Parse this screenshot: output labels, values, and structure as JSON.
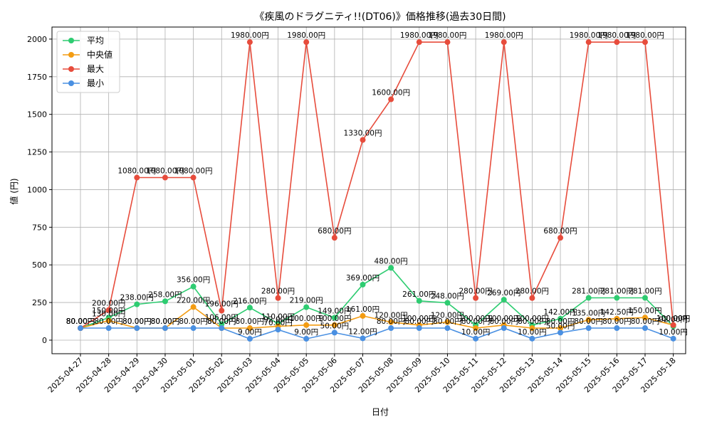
{
  "chart_data": {
    "type": "line",
    "title": "《疾風のドラグニティ!!(DT06)》価格推移(過去30日間)",
    "xlabel": "日付",
    "ylabel": "値 (円)",
    "ylim": [
      -90,
      2080
    ],
    "yticks": [
      0,
      250,
      500,
      750,
      1000,
      1250,
      1500,
      1750,
      2000
    ],
    "grid": true,
    "legend_position": "top-left",
    "categories": [
      "2025-04-27",
      "2025-04-28",
      "2025-04-29",
      "2025-04-30",
      "2025-05-01",
      "2025-05-02",
      "2025-05-03",
      "2025-05-04",
      "2025-05-05",
      "2025-05-06",
      "2025-05-07",
      "2025-05-08",
      "2025-05-09",
      "2025-05-10",
      "2025-05-11",
      "2025-05-12",
      "2025-05-13",
      "2025-05-14",
      "2025-05-15",
      "2025-05-16",
      "2025-05-17",
      "2025-05-18"
    ],
    "series": [
      {
        "name": "平均",
        "color": "#2ecc71",
        "values": [
          80,
          150,
          238,
          258,
          356,
          106,
          216,
          110,
          219,
          149,
          369,
          480,
          261,
          248,
          100,
          269,
          100,
          142,
          281,
          281,
          281,
          92
        ],
        "labels": [
          "80.00円",
          "150.00円",
          "238.00円",
          "258.00円",
          "356.00円",
          "106.00円",
          "216.00円",
          "110.00円",
          "219.00円",
          "149.00円",
          "369.00円",
          "480.00円",
          "261.00円",
          "248.00円",
          "100.00円",
          "269.00円",
          "100.00円",
          "142.00円",
          "281.00円",
          "281.00円",
          "281.00円",
          "92.00円"
        ]
      },
      {
        "name": "中央値",
        "color": "#f39c12",
        "values": [
          80,
          130,
          80,
          80,
          220,
          80,
          80,
          92,
          100,
          100,
          161,
          120,
          100,
          120,
          80,
          100,
          80,
          80,
          135,
          142.5,
          150,
          100
        ],
        "labels": [
          "80.00円",
          "130.00円",
          "80.00円",
          "80.00円",
          "220.00円",
          "80.00円",
          "80.00円",
          "92.00円",
          "100.00円",
          "100.00円",
          "161.00円",
          "120.00円",
          "100.00円",
          "120.00円",
          "80.00円",
          "100.00円",
          "80.00円",
          "80.00円",
          "135.00円",
          "142.50円",
          "150.00円",
          "100.00円"
        ]
      },
      {
        "name": "最大",
        "color": "#e74c3c",
        "values": [
          80,
          200,
          1080,
          1080,
          1080,
          196,
          1980,
          280,
          1980,
          680,
          1330,
          1600,
          1980,
          1980,
          280,
          1980,
          280,
          680,
          1980,
          1980,
          1980,
          100
        ],
        "labels": [
          "80.00円",
          "200.00円",
          "1080.00円",
          "1080.00円",
          "1080.00円",
          "196.00円",
          "1980.00円",
          "280.00円",
          "1980.00円",
          "680.00円",
          "1330.00円",
          "1600.00円",
          "1980.00円",
          "1980.00円",
          "280.00円",
          "1980.00円",
          "280.00円",
          "680.00円",
          "1980.00円",
          "1980.00円",
          "1980.00円",
          "100.00円"
        ]
      },
      {
        "name": "最小",
        "color": "#4a90e2",
        "values": [
          80,
          80,
          80,
          80,
          80,
          80,
          9,
          70,
          9,
          50,
          12,
          80,
          80,
          80,
          10,
          80,
          10,
          50,
          80,
          80,
          80,
          10
        ],
        "labels": [
          "80.00円",
          "80.00円",
          "80.00円",
          "80.00円",
          "80.00円",
          "80.00円",
          "9.00円",
          "70.00円",
          "9.00円",
          "50.00円",
          "12.00円",
          "80.00円",
          "80.00円",
          "80.00円",
          "10.00円",
          "80.00円",
          "10.00円",
          "50.00円",
          "80.00円",
          "80.00円",
          "80.00円",
          "10.00円"
        ]
      }
    ]
  }
}
